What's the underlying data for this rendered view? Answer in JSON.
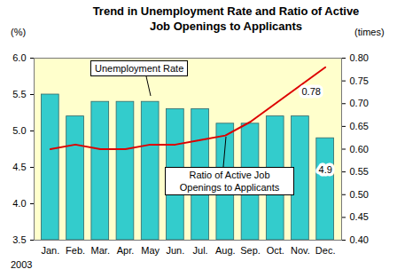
{
  "chart_data": {
    "type": "bar",
    "title": "Trend in Unemployment Rate and Ratio of Active Job Openings to Applicants",
    "ylabel": "(%)",
    "y2label": "(times)",
    "xlabel": "2003",
    "categories": [
      "Jan.",
      "Feb.",
      "Mar.",
      "Apr.",
      "May",
      "Jun.",
      "Jul.",
      "Aug.",
      "Sep.",
      "Oct.",
      "Nov.",
      "Dec."
    ],
    "series": [
      {
        "name": "Unemployment Rate",
        "type": "bar",
        "color": "#33cccc",
        "values": [
          5.5,
          5.2,
          5.4,
          5.4,
          5.4,
          5.3,
          5.3,
          5.1,
          5.1,
          5.2,
          5.2,
          4.9
        ],
        "value_labels": [
          null,
          null,
          null,
          null,
          null,
          null,
          null,
          null,
          null,
          null,
          null,
          "4.9"
        ]
      },
      {
        "name": "Ratio of Active Job Openings to Applicants",
        "type": "line",
        "color": "#dd0000",
        "axis": "y2",
        "values": [
          0.6,
          0.61,
          0.6,
          0.6,
          0.61,
          0.61,
          0.62,
          0.63,
          0.66,
          0.7,
          0.74,
          0.78
        ],
        "value_labels": [
          null,
          null,
          null,
          null,
          null,
          null,
          null,
          null,
          null,
          null,
          null,
          "0.78"
        ]
      }
    ],
    "ylim": [
      3.5,
      6.0
    ],
    "yticks": [
      {
        "value": 3.5,
        "label": "3.5"
      },
      {
        "value": 4,
        "label": "4.0"
      },
      {
        "value": 4.5,
        "label": "4.5"
      },
      {
        "value": 5,
        "label": "5.0"
      },
      {
        "value": 5.5,
        "label": "5.5"
      },
      {
        "value": 6,
        "label": "6.0"
      }
    ],
    "y2lim": [
      0.4,
      0.8
    ],
    "y2ticks": [
      {
        "value": 0.4,
        "label": "0.40"
      },
      {
        "value": 0.45,
        "label": "0.45"
      },
      {
        "value": 0.5,
        "label": "0.50"
      },
      {
        "value": 0.55,
        "label": "0.55"
      },
      {
        "value": 0.6,
        "label": "0.60"
      },
      {
        "value": 0.65,
        "label": "0.65"
      },
      {
        "value": 0.7,
        "label": "0.70"
      },
      {
        "value": 0.75,
        "label": "0.75"
      },
      {
        "value": 0.8,
        "label": "0.80"
      }
    ]
  }
}
